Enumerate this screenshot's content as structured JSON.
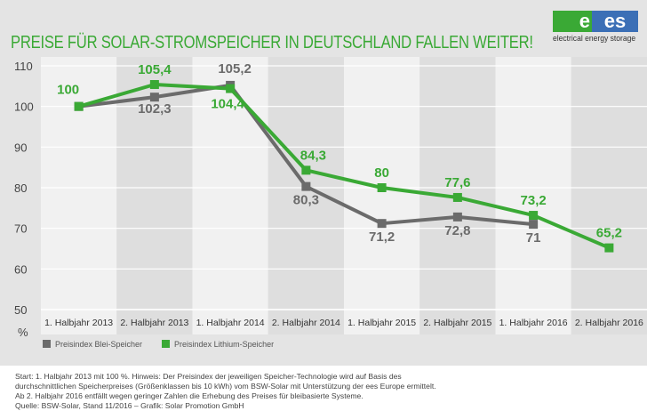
{
  "title": "PREISE FÜR SOLAR-STROMSPEICHER IN DEUTSCHLAND FALLEN WEITER!",
  "logo": {
    "text": "ees",
    "tagline": "electrical energy storage",
    "colors": [
      "#3aa935",
      "#3b6fb6"
    ]
  },
  "chart_data": {
    "type": "line",
    "title": "PREISE FÜR SOLAR-STROMSPEICHER IN DEUTSCHLAND FALLEN WEITER!",
    "ylabel": "%",
    "ylim": [
      50,
      110
    ],
    "yticks": [
      50,
      60,
      70,
      80,
      90,
      100,
      110
    ],
    "grid": true,
    "legend_position": "bottom-left",
    "categories": [
      "1. Halbjahr 2013",
      "2. Halbjahr 2013",
      "1. Halbjahr 2014",
      "2. Halbjahr 2014",
      "1. Halbjahr 2015",
      "2. Halbjahr 2015",
      "1. Halbjahr 2016",
      "2. Halbjahr 2016"
    ],
    "series": [
      {
        "name": "Preisindex Blei-Speicher",
        "color": "#6b6b6b",
        "values": [
          100,
          102.3,
          105.2,
          80.3,
          71.2,
          72.8,
          71,
          null
        ],
        "labels": [
          "",
          "102,3",
          "105,2",
          "80,3",
          "71,2",
          "72,8",
          "71",
          ""
        ]
      },
      {
        "name": "Preisindex Lithium-Speicher",
        "color": "#3aa935",
        "values": [
          100,
          105.4,
          104.4,
          84.3,
          80,
          77.6,
          73.2,
          65.2
        ],
        "labels": [
          "100",
          "105,4",
          "104,4",
          "84,3",
          "80",
          "77,6",
          "73,2",
          "65,2"
        ]
      }
    ]
  },
  "notes": [
    "Start: 1. Halbjahr 2013 mit 100 %. Hinweis: Der Preisindex der jeweiligen Speicher-Technologie wird auf Basis des",
    "durchschnittlichen Speicherpreises (Größenklassen bis 10 kWh) vom BSW-Solar mit Unterstützung der ees Europe ermittelt.",
    "Ab 2. Halbjahr 2016 entfällt wegen geringer Zahlen die Erhebung des Preises für bleibasierte Systeme.",
    "Quelle: BSW-Solar, Stand 11/2016 – Grafik: Solar Promotion GmbH"
  ]
}
